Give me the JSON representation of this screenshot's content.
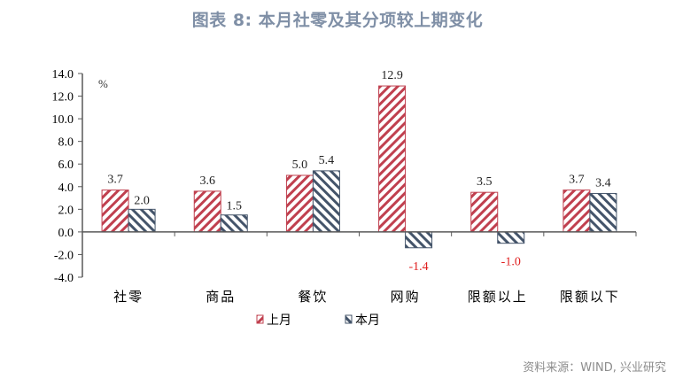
{
  "title": "图表 8:  本月社零及其分项较上期变化",
  "source": "资料来源：WIND, 兴业研究",
  "unit": "%",
  "colors": {
    "last_month": "#c0404f",
    "this_month": "#44546a",
    "negative_label": "#e02020"
  },
  "chart_data": {
    "type": "bar",
    "title": "图表 8:  本月社零及其分项较上期变化",
    "xlabel": "",
    "ylabel": "%",
    "ylim": [
      -4.0,
      14.0
    ],
    "yticks": [
      "14.0",
      "12.0",
      "10.0",
      "8.0",
      "6.0",
      "4.0",
      "2.0",
      "0.0",
      "-2.0",
      "-4.0"
    ],
    "categories": [
      "社零",
      "商品",
      "餐饮",
      "网购",
      "限额以上",
      "限额以下"
    ],
    "series": [
      {
        "name": "上月",
        "values": [
          3.7,
          3.6,
          5.0,
          12.9,
          3.5,
          3.7
        ]
      },
      {
        "name": "本月",
        "values": [
          2.0,
          1.5,
          5.4,
          -1.4,
          -1.0,
          3.4
        ]
      }
    ],
    "data_labels": {
      "上月": [
        "3.7",
        "3.6",
        "5.0",
        "12.9",
        "3.5",
        "3.7"
      ],
      "本月": [
        "2.0",
        "1.5",
        "5.4",
        "-1.4",
        "-1.0",
        "3.4"
      ]
    },
    "grid": false,
    "legend_position": "bottom",
    "pattern": {
      "上月": "diagonal-hatch-backslash",
      "本月": "diagonal-hatch-slash"
    }
  },
  "legend": [
    {
      "label": "上月",
      "icon": "red-hatch-swatch"
    },
    {
      "label": "本月",
      "icon": "blue-hatch-swatch"
    }
  ]
}
